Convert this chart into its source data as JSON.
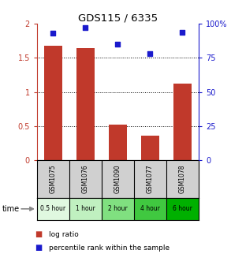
{
  "title": "GDS115 / 6335",
  "categories": [
    "GSM1075",
    "GSM1076",
    "GSM1090",
    "GSM1077",
    "GSM1078"
  ],
  "time_labels": [
    "0.5 hour",
    "1 hour",
    "2 hour",
    "4 hour",
    "6 hour"
  ],
  "log_ratio": [
    1.68,
    1.65,
    0.52,
    0.36,
    1.12
  ],
  "percentile": [
    93,
    97,
    85,
    78,
    94
  ],
  "bar_color": "#c0392b",
  "dot_color": "#1a1acc",
  "ylim_left": [
    0,
    2
  ],
  "ylim_right": [
    0,
    100
  ],
  "yticks_left": [
    0,
    0.5,
    1.0,
    1.5,
    2.0
  ],
  "ytick_labels_left": [
    "0",
    "0.5",
    "1",
    "1.5",
    "2"
  ],
  "yticks_right": [
    0,
    25,
    50,
    75,
    100
  ],
  "ytick_labels_right": [
    "0",
    "25",
    "50",
    "75",
    "100%"
  ],
  "background_color": "#ffffff",
  "time_label": "time",
  "legend_bar": "log ratio",
  "legend_dot": "percentile rank within the sample",
  "time_bg_colors": [
    "#e0f8e0",
    "#c0f0c0",
    "#80e080",
    "#40c840",
    "#00b000"
  ],
  "header_bg": "#d0d0d0"
}
